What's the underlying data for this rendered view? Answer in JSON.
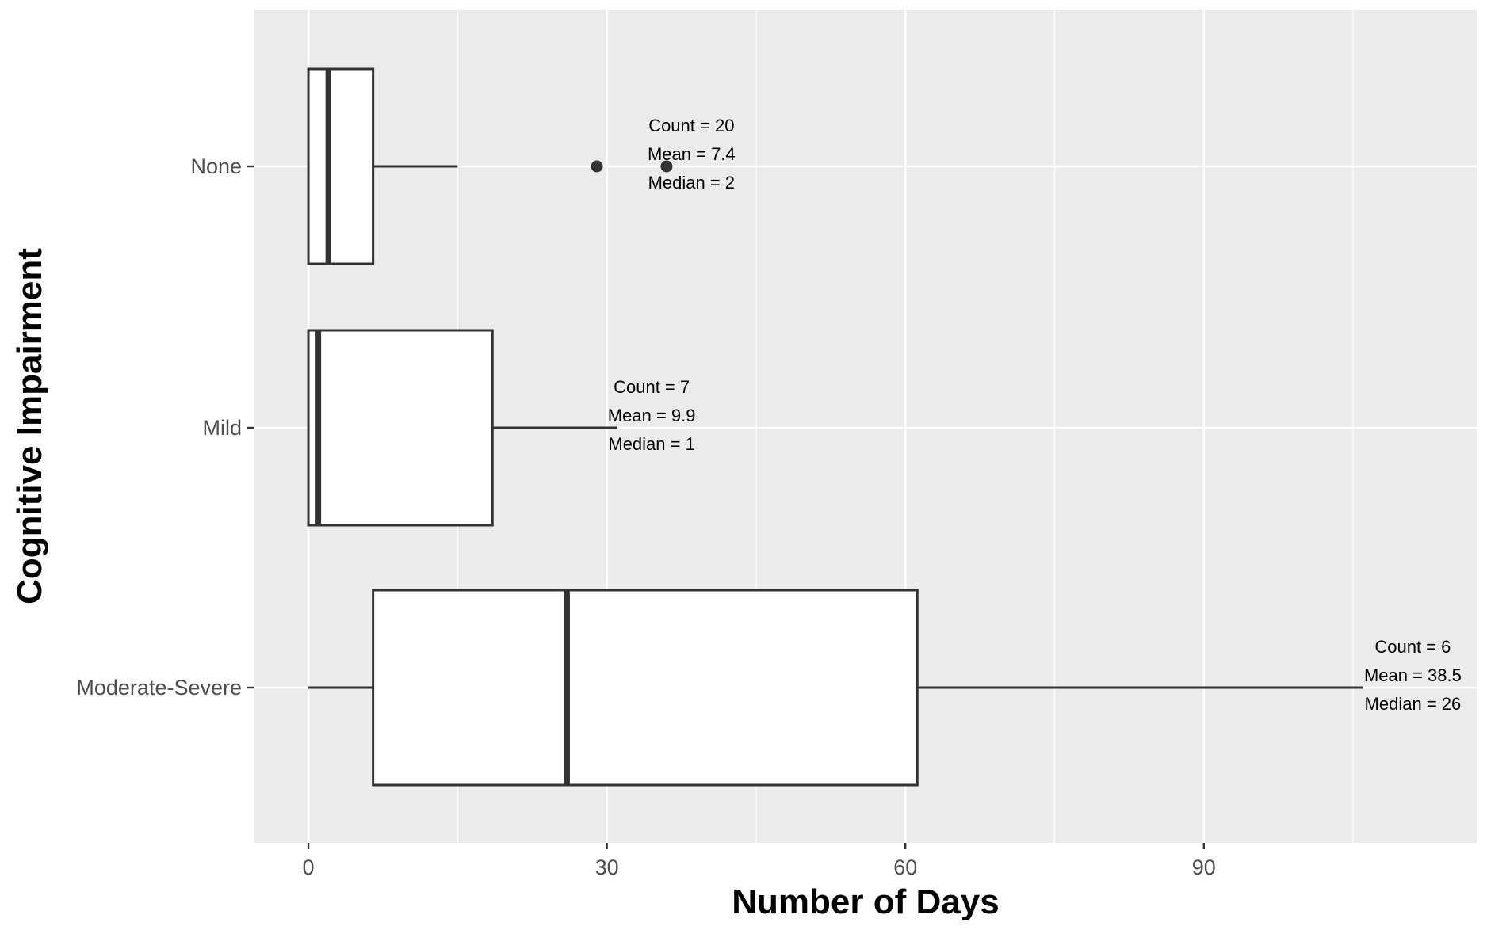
{
  "chart_data": {
    "type": "boxplot",
    "orientation": "horizontal",
    "xlabel": "Number of Days",
    "ylabel": "Cognitive Impairment",
    "xlim": [
      -5.5,
      117.5
    ],
    "x_ticks": [
      0,
      30,
      60,
      90
    ],
    "x_minor_ticks": [
      15,
      45,
      75,
      105
    ],
    "grid": true,
    "legend": "none",
    "colors": {
      "panel": "#ebebeb",
      "grid": "#ffffff",
      "box_fill": "#ffffff",
      "box_stroke": "#333333",
      "tick_label": "#4d4d4d"
    },
    "groups": [
      {
        "name": "None",
        "min": 0,
        "q1": 0,
        "median": 2,
        "q3": 6.5,
        "max": 15,
        "outliers": [
          29,
          36
        ],
        "annotation": [
          "Count = 20",
          "Mean = 7.4",
          "Median = 2"
        ],
        "annotation_x": 38.5
      },
      {
        "name": "Mild",
        "min": 0,
        "q1": 0,
        "median": 1,
        "q3": 18.5,
        "max": 31,
        "outliers": [],
        "annotation": [
          "Count = 7",
          "Mean = 9.9",
          "Median = 1"
        ],
        "annotation_x": 34.5
      },
      {
        "name": "Moderate-Severe",
        "min": 0,
        "q1": 6.5,
        "median": 26,
        "q3": 61.2,
        "max": 106,
        "outliers": [],
        "annotation": [
          "Count = 6",
          "Mean = 38.5",
          "Median = 26"
        ],
        "annotation_x": 111
      }
    ]
  }
}
